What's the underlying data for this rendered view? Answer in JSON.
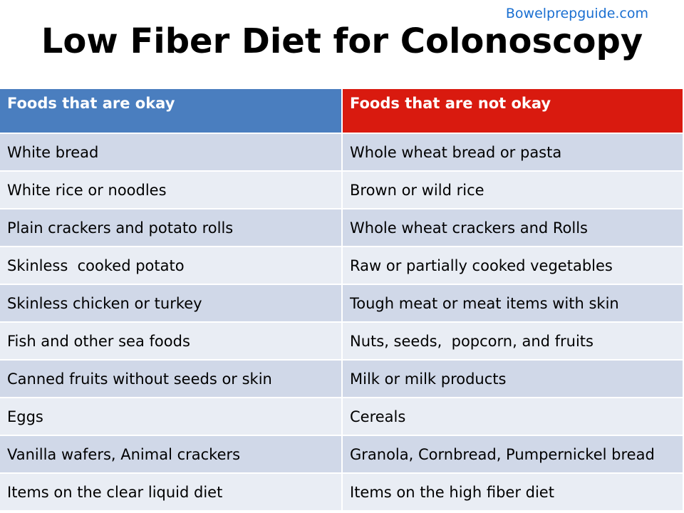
{
  "header": {
    "site": "Bowelprepguide.com",
    "title": "Low Fiber Diet for Colonoscopy"
  },
  "table": {
    "columns": [
      "Foods that are okay",
      "Foods that are not okay"
    ],
    "rows": [
      [
        "White bread",
        "Whole wheat bread or pasta"
      ],
      [
        "White rice or noodles",
        "Brown or wild rice"
      ],
      [
        "Plain crackers and potato rolls",
        "Whole wheat crackers and Rolls"
      ],
      [
        "Skinless  cooked potato",
        "Raw or partially cooked vegetables"
      ],
      [
        "Skinless chicken or turkey",
        "Tough meat or meat items with skin"
      ],
      [
        "Fish and other sea foods",
        "Nuts, seeds,  popcorn, and fruits"
      ],
      [
        "Canned fruits without seeds or skin",
        "Milk or milk products"
      ],
      [
        "Eggs",
        "Cereals"
      ],
      [
        "Vanilla wafers, Animal crackers",
        "Granola, Cornbread, Pumpernickel bread"
      ],
      [
        "Items on the clear liquid diet",
        "Items on the high fiber diet"
      ]
    ]
  }
}
